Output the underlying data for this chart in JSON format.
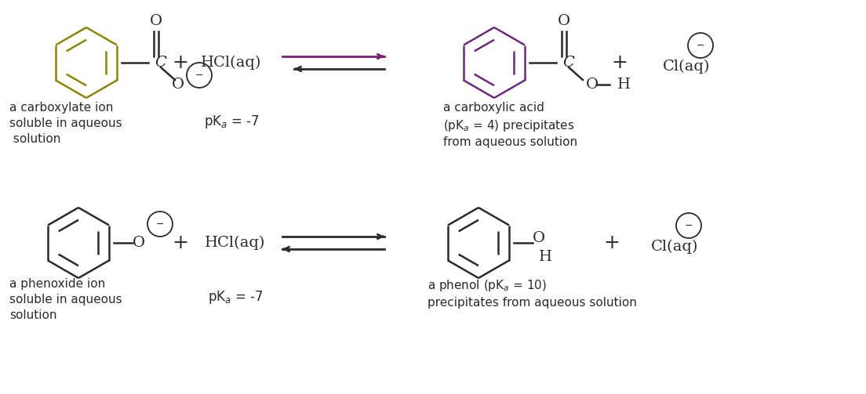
{
  "bg_color": "#ffffff",
  "ring_color_top_left": "#8b8500",
  "ring_color_top_right": "#6b2b7a",
  "ring_color_bottom": "#2a2a2a",
  "arrow_color_top": "#7b2070",
  "arrow_color_dark": "#2a2a2a",
  "row1_left_label": "a carboxylate ion\nsoluble in aqueous\n solution",
  "row1_pka": "pK$_a$ = -7",
  "row1_right_label": "a carboxylic acid\n(pK$_a$ = 4) precipitates\nfrom aqueous solution",
  "row2_left_label": "a phenoxide ion\nsoluble in aqueous\nsolution",
  "row2_pka": "pK$_a$ = -7",
  "row2_right_label": "a phenol (pK$_a$ = 10)\nprecipitates from aqueous solution"
}
